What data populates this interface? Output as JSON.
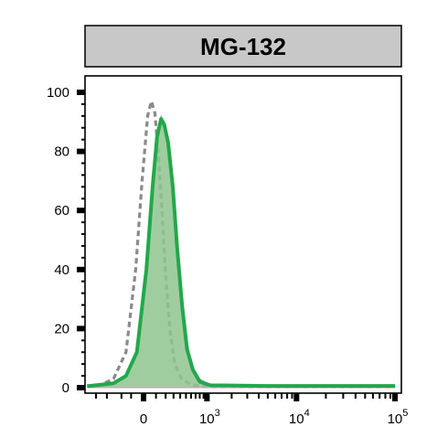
{
  "chart_data": {
    "type": "area",
    "title": "MG-132",
    "xlabel": "",
    "ylabel": "",
    "ylim": [
      0,
      100
    ],
    "y_ticks": [
      "0",
      "20",
      "40",
      "60",
      "80",
      "100"
    ],
    "x_ticks": [
      {
        "base": "0",
        "exp": ""
      },
      {
        "base": "10",
        "exp": "3"
      },
      {
        "base": "10",
        "exp": "4"
      },
      {
        "base": "10",
        "exp": "5"
      }
    ],
    "x_axis_scale": "biexponential",
    "series": [
      {
        "style": "dashed",
        "color": "#8a8a8a",
        "points": [
          [
            -800,
            0.5
          ],
          [
            -500,
            1
          ],
          [
            -300,
            3
          ],
          [
            -150,
            12
          ],
          [
            -60,
            40
          ],
          [
            -10,
            70
          ],
          [
            30,
            92
          ],
          [
            60,
            97
          ],
          [
            90,
            93
          ],
          [
            120,
            80
          ],
          [
            160,
            60
          ],
          [
            200,
            38
          ],
          [
            250,
            20
          ],
          [
            320,
            8
          ],
          [
            420,
            3
          ],
          [
            600,
            1
          ],
          [
            1000,
            0.3
          ],
          [
            10000,
            0.3
          ],
          [
            100000,
            0.3
          ]
        ]
      },
      {
        "style": "filled",
        "color": "#8fc48f",
        "points": [
          [
            -800,
            1
          ],
          [
            -300,
            1.5
          ],
          [
            -150,
            4
          ],
          [
            -50,
            12
          ],
          [
            20,
            40
          ],
          [
            70,
            68
          ],
          [
            110,
            85
          ],
          [
            150,
            92
          ],
          [
            185,
            90
          ],
          [
            230,
            84
          ],
          [
            290,
            70
          ],
          [
            350,
            50
          ],
          [
            430,
            30
          ],
          [
            520,
            15
          ],
          [
            640,
            7
          ],
          [
            800,
            3
          ],
          [
            1100,
            1
          ],
          [
            5000,
            0.6
          ],
          [
            100000,
            0.8
          ]
        ]
      },
      {
        "style": "solid",
        "color": "#22a84a",
        "points": [
          [
            -800,
            0.5
          ],
          [
            -300,
            1.5
          ],
          [
            -150,
            4
          ],
          [
            -50,
            12
          ],
          [
            20,
            40
          ],
          [
            70,
            68
          ],
          [
            110,
            85
          ],
          [
            150,
            91
          ],
          [
            185,
            89
          ],
          [
            230,
            83
          ],
          [
            290,
            68
          ],
          [
            350,
            48
          ],
          [
            430,
            28
          ],
          [
            520,
            13
          ],
          [
            640,
            6
          ],
          [
            800,
            2
          ],
          [
            1100,
            0.8
          ],
          [
            5000,
            0.6
          ],
          [
            100000,
            0.6
          ]
        ]
      }
    ],
    "colors": {
      "strip": "#c8c8c8",
      "dashed": "#8a8a8a",
      "fill": "#8fc48f",
      "line": "#22a84a",
      "fill_accent": "#c99cc4"
    }
  }
}
